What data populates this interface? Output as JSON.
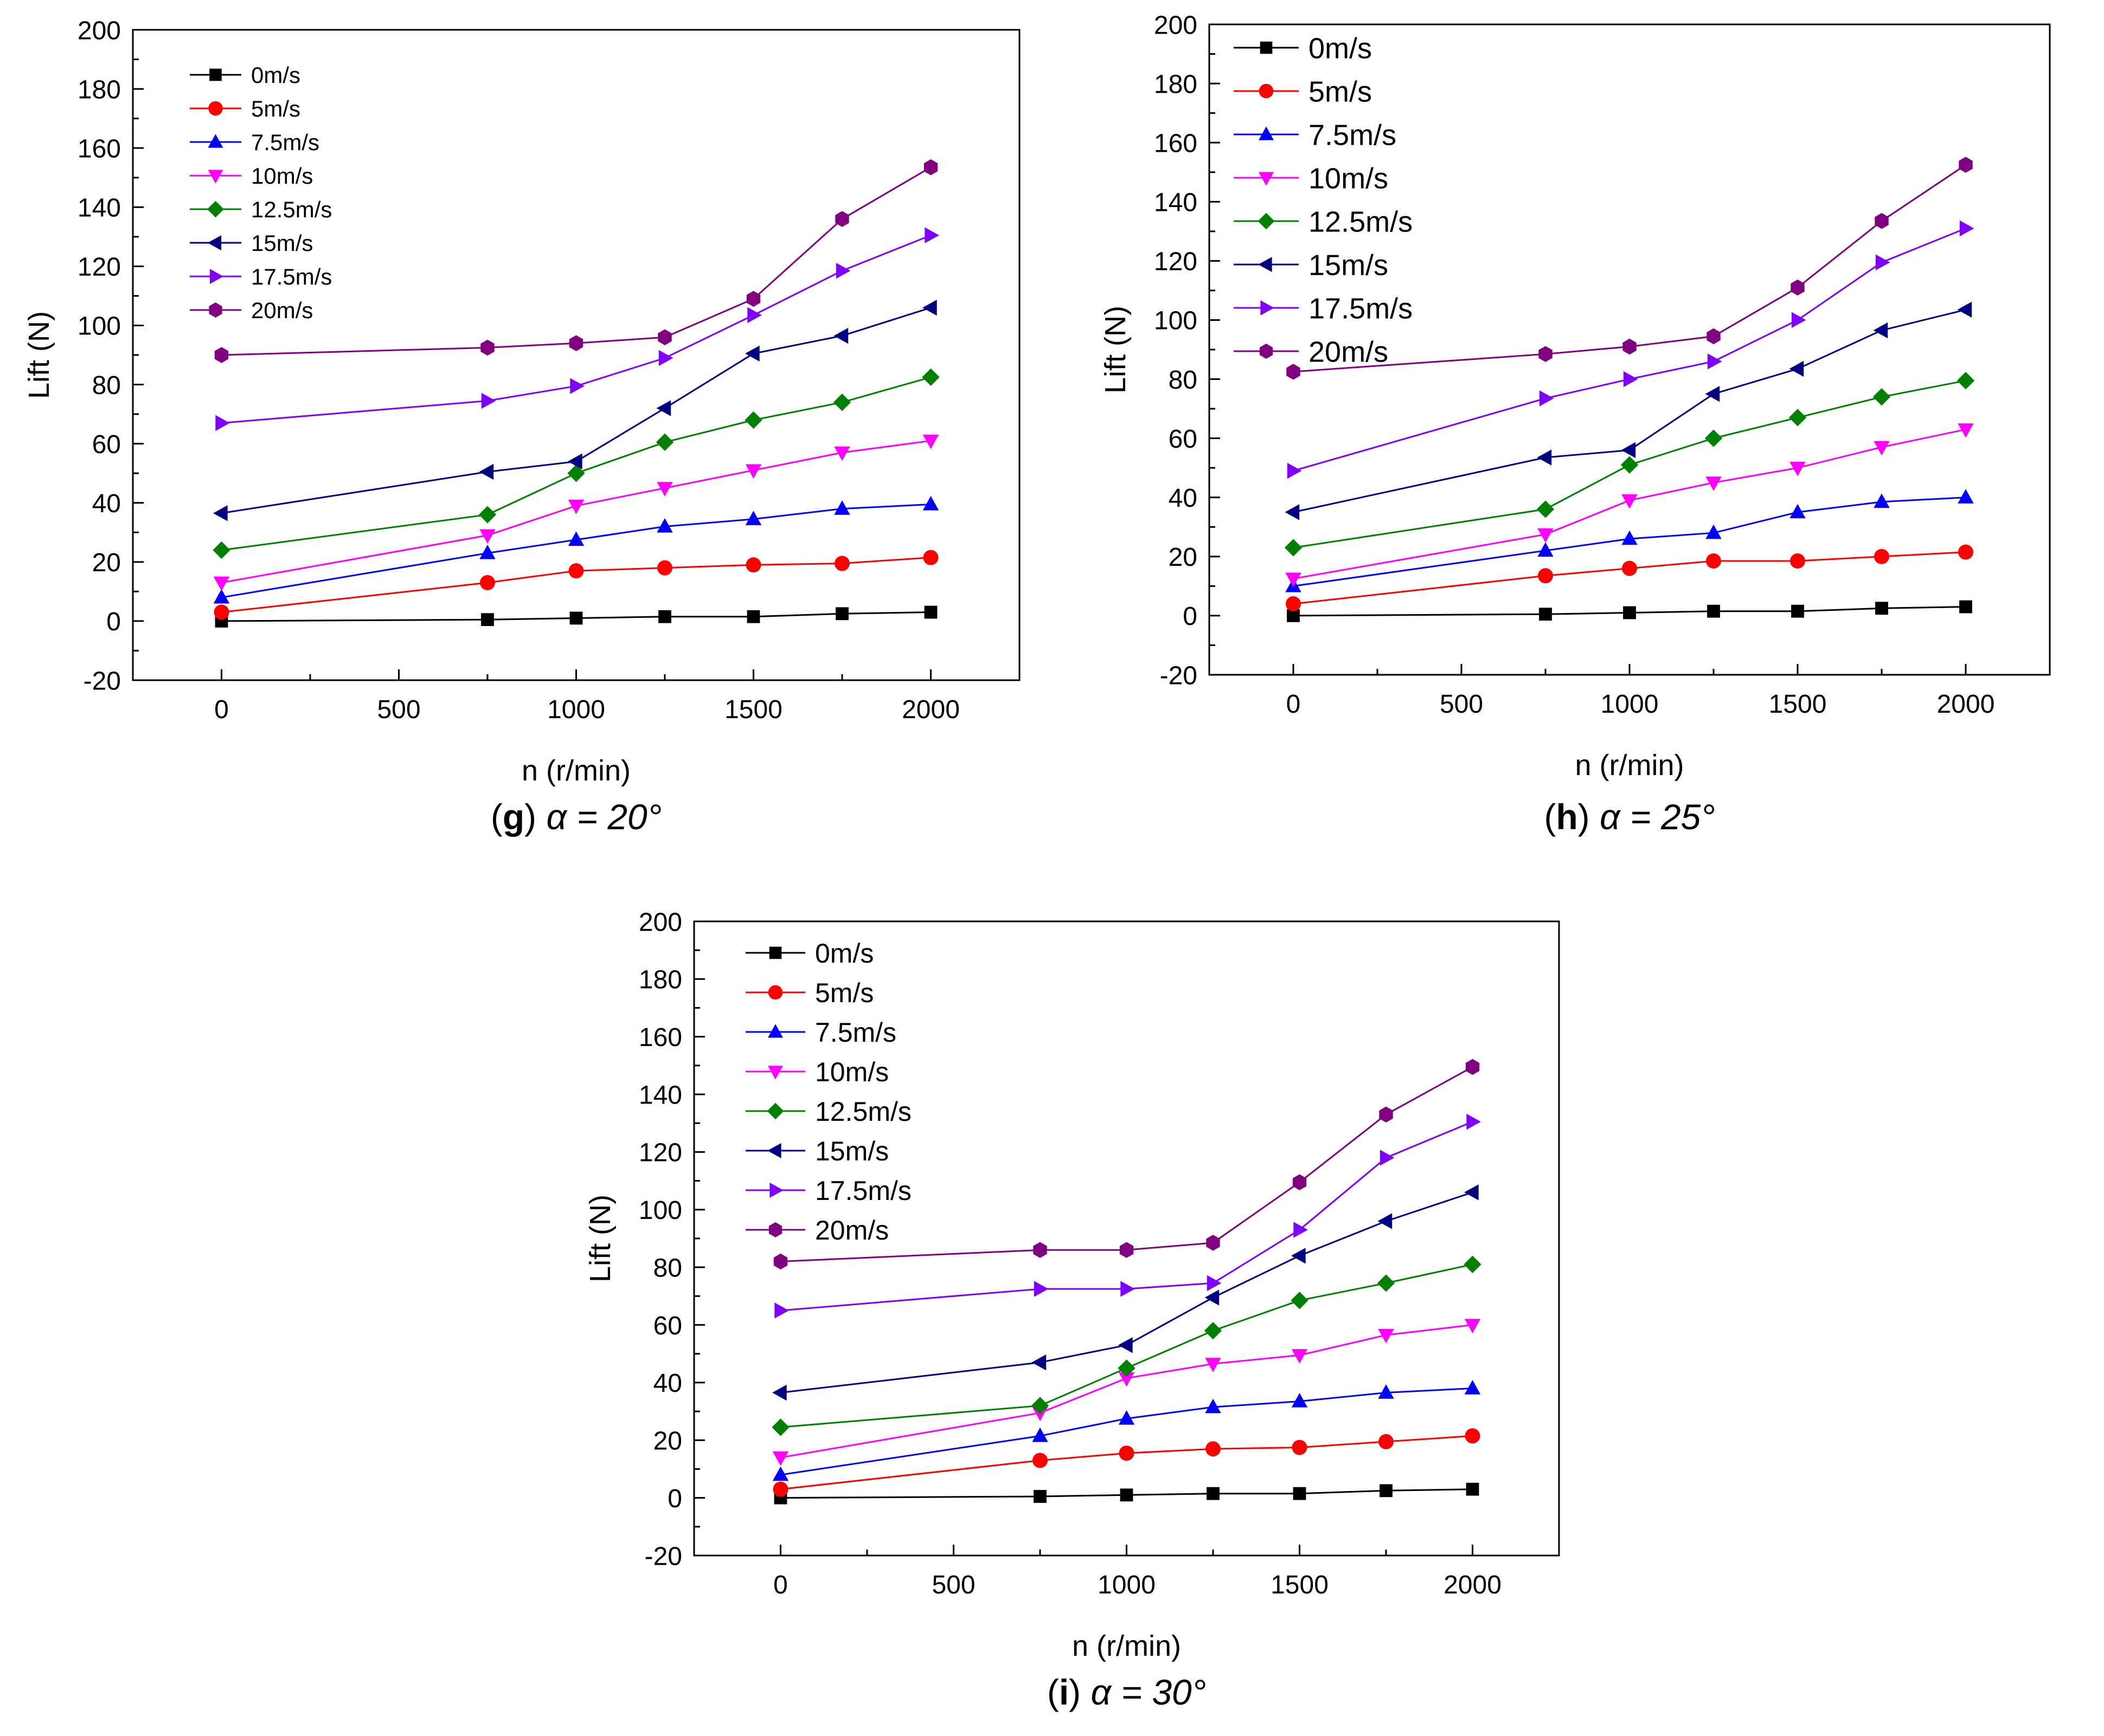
{
  "chart_data": [
    {
      "type": "line",
      "caption": {
        "letter": "g",
        "text": " α = 20°"
      },
      "xlabel": "n (r/min)",
      "ylabel": "Lift (N)",
      "xlim": [
        -250,
        2250
      ],
      "ylim": [
        -20,
        200
      ],
      "xticks": [
        0,
        500,
        1000,
        1500,
        2000
      ],
      "yticks": [
        -20,
        0,
        20,
        40,
        60,
        80,
        100,
        120,
        140,
        160,
        180,
        200
      ],
      "legend_position": "top-left",
      "x": [
        0,
        750,
        1000,
        1250,
        1500,
        1750,
        2000
      ],
      "series": [
        {
          "name": "0m/s",
          "color": "#000000",
          "marker": "square",
          "values": [
            0,
            0.5,
            1,
            1.5,
            1.5,
            2.5,
            3
          ]
        },
        {
          "name": "5m/s",
          "color": "#ff0000",
          "marker": "circle",
          "values": [
            3,
            13,
            17,
            18,
            19,
            19.5,
            21.5
          ]
        },
        {
          "name": "7.5m/s",
          "color": "#0000ff",
          "marker": "triangle-up",
          "values": [
            8,
            23,
            27.5,
            32,
            34.5,
            38,
            39.5
          ]
        },
        {
          "name": "10m/s",
          "color": "#ff00ff",
          "marker": "triangle-down",
          "values": [
            13,
            29,
            39,
            45,
            51,
            57,
            61
          ]
        },
        {
          "name": "12.5m/s",
          "color": "#008000",
          "marker": "diamond",
          "values": [
            24,
            36,
            50,
            60.5,
            68,
            74,
            82.5
          ]
        },
        {
          "name": "15m/s",
          "color": "#000080",
          "marker": "triangle-left",
          "values": [
            36.5,
            50.5,
            54,
            72,
            90.5,
            96.5,
            106
          ]
        },
        {
          "name": "17.5m/s",
          "color": "#8000ff",
          "marker": "triangle-right",
          "values": [
            67,
            74.5,
            79.5,
            89,
            103.5,
            118.5,
            130.5
          ]
        },
        {
          "name": "20m/s",
          "color": "#800080",
          "marker": "hexagon",
          "values": [
            90,
            92.5,
            94,
            96,
            109,
            136,
            153.5
          ]
        }
      ]
    },
    {
      "type": "line",
      "caption": {
        "letter": "h",
        "text": " α = 25°"
      },
      "xlabel": "n (r/min)",
      "ylabel": "Lift (N)",
      "xlim": [
        -250,
        2250
      ],
      "ylim": [
        -20,
        200
      ],
      "xticks": [
        0,
        500,
        1000,
        1500,
        2000
      ],
      "yticks": [
        -20,
        0,
        20,
        40,
        60,
        80,
        100,
        120,
        140,
        160,
        180,
        200
      ],
      "legend_position": "top-left",
      "x": [
        0,
        750,
        1000,
        1250,
        1500,
        1750,
        2000
      ],
      "series": [
        {
          "name": "0m/s",
          "color": "#000000",
          "marker": "square",
          "values": [
            0,
            0.5,
            1,
            1.5,
            1.5,
            2.5,
            3
          ]
        },
        {
          "name": "5m/s",
          "color": "#ff0000",
          "marker": "circle",
          "values": [
            4,
            13.5,
            16,
            18.5,
            18.5,
            20,
            21.5
          ]
        },
        {
          "name": "7.5m/s",
          "color": "#0000ff",
          "marker": "triangle-up",
          "values": [
            10,
            22,
            26,
            28,
            35,
            38.5,
            40
          ]
        },
        {
          "name": "10m/s",
          "color": "#ff00ff",
          "marker": "triangle-down",
          "values": [
            12.5,
            27.5,
            39,
            45,
            50,
            57,
            63
          ]
        },
        {
          "name": "12.5m/s",
          "color": "#008000",
          "marker": "diamond",
          "values": [
            23,
            36,
            51,
            60,
            67,
            74,
            79.5
          ]
        },
        {
          "name": "15m/s",
          "color": "#000080",
          "marker": "triangle-left",
          "values": [
            35,
            53.5,
            56,
            75,
            83.5,
            96.5,
            103.5
          ]
        },
        {
          "name": "17.5m/s",
          "color": "#8000ff",
          "marker": "triangle-right",
          "values": [
            49,
            73.5,
            80,
            86,
            100,
            119.5,
            131
          ]
        },
        {
          "name": "20m/s",
          "color": "#800080",
          "marker": "hexagon",
          "values": [
            82.5,
            88.5,
            91,
            94.5,
            111,
            133.5,
            152.5
          ]
        }
      ]
    },
    {
      "type": "line",
      "caption": {
        "letter": "i",
        "text": " α = 30°"
      },
      "xlabel": "n (r/min)",
      "ylabel": "Lift (N)",
      "xlim": [
        -250,
        2250
      ],
      "ylim": [
        -20,
        200
      ],
      "xticks": [
        0,
        500,
        1000,
        1500,
        2000
      ],
      "yticks": [
        -20,
        0,
        20,
        40,
        60,
        80,
        100,
        120,
        140,
        160,
        180,
        200
      ],
      "legend_position": "top-left",
      "x": [
        0,
        750,
        1000,
        1250,
        1500,
        1750,
        2000
      ],
      "series": [
        {
          "name": "0m/s",
          "color": "#000000",
          "marker": "square",
          "values": [
            0,
            0.5,
            1,
            1.5,
            1.5,
            2.5,
            3
          ]
        },
        {
          "name": "5m/s",
          "color": "#ff0000",
          "marker": "circle",
          "values": [
            3,
            13,
            15.5,
            17,
            17.5,
            19.5,
            21.5
          ]
        },
        {
          "name": "7.5m/s",
          "color": "#0000ff",
          "marker": "triangle-up",
          "values": [
            8,
            21.5,
            27.5,
            31.5,
            33.5,
            36.5,
            38
          ]
        },
        {
          "name": "10m/s",
          "color": "#ff00ff",
          "marker": "triangle-down",
          "values": [
            14,
            29.5,
            41.5,
            46.5,
            49.5,
            56.5,
            60
          ]
        },
        {
          "name": "12.5m/s",
          "color": "#008000",
          "marker": "diamond",
          "values": [
            24.5,
            32,
            45,
            58,
            68.5,
            74.5,
            81
          ]
        },
        {
          "name": "15m/s",
          "color": "#000080",
          "marker": "triangle-left",
          "values": [
            36.5,
            47,
            53,
            69.5,
            84,
            96,
            106
          ]
        },
        {
          "name": "17.5m/s",
          "color": "#8000ff",
          "marker": "triangle-right",
          "values": [
            65,
            72.5,
            72.5,
            74.5,
            93,
            118,
            130.5
          ]
        },
        {
          "name": "20m/s",
          "color": "#800080",
          "marker": "hexagon",
          "values": [
            82,
            86,
            86,
            88.5,
            109.5,
            133,
            149.5
          ]
        }
      ]
    }
  ]
}
